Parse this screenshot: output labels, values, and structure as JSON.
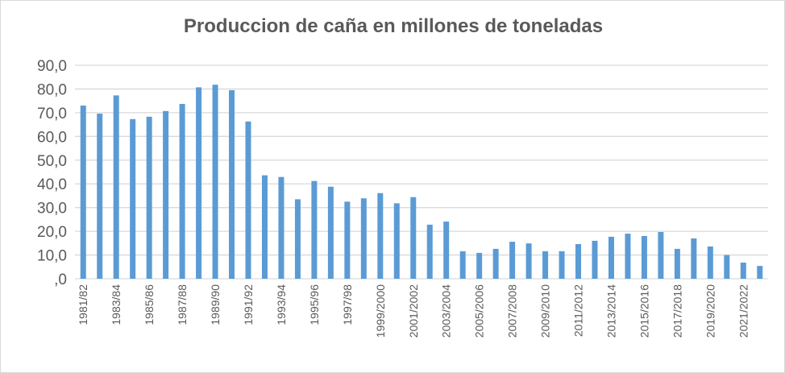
{
  "chart_data": {
    "type": "bar",
    "title": "Produccion de caña en millones de toneladas",
    "xlabel": "",
    "ylabel": "",
    "ylim": [
      0,
      90
    ],
    "yticks": [
      ",0",
      "10,0",
      "20,0",
      "30,0",
      "40,0",
      "50,0",
      "60,0",
      "70,0",
      "80,0",
      "90,0"
    ],
    "grid": true,
    "bar_color": "#5b9bd5",
    "categories": [
      "1981/82",
      "1982/83",
      "1983/84",
      "1984/85",
      "1985/86",
      "1986/87",
      "1987/88",
      "1988/89",
      "1989/90",
      "1990/91",
      "1991/92",
      "1992/93",
      "1993/94",
      "1994/95",
      "1995/96",
      "1996/97",
      "1997/98",
      "1998/99",
      "1999/2000",
      "2000/2001",
      "2001/2002",
      "2002/2003",
      "2003/2004",
      "2004/2005",
      "2005/2006",
      "2006/2007",
      "2007/2008",
      "2008/2009",
      "2009/2010",
      "2010/2011",
      "2011/2012",
      "2012/2013",
      "2013/2014",
      "2014/2015",
      "2015/2016",
      "2016/2017",
      "2017/2018",
      "2018/2019",
      "2019/2020",
      "2020/2021",
      "2021/2022",
      "2022/2023"
    ],
    "visible_tick_labels": [
      "1981/82",
      "1983/84",
      "1985/86",
      "1987/88",
      "1989/90",
      "1991/92",
      "1993/94",
      "1995/96",
      "1997/98",
      "1999/2000",
      "2001/2002",
      "2003/2004",
      "2005/2006",
      "2007/2008",
      "2009/2010",
      "2011/2012",
      "2013/2014",
      "2015/2016",
      "2017/2018",
      "2019/2020",
      "2021/2022"
    ],
    "values": [
      73.0,
      69.6,
      77.3,
      67.3,
      68.3,
      70.7,
      73.7,
      80.7,
      81.8,
      79.5,
      66.3,
      43.6,
      42.9,
      33.5,
      41.2,
      38.8,
      32.5,
      33.9,
      36.1,
      31.8,
      34.4,
      22.8,
      24.1,
      11.6,
      10.9,
      12.6,
      15.6,
      14.9,
      11.6,
      11.6,
      14.6,
      16.0,
      17.7,
      19.0,
      18.0,
      19.7,
      12.6,
      17.0,
      13.6,
      10.0,
      6.8,
      5.4
    ]
  }
}
